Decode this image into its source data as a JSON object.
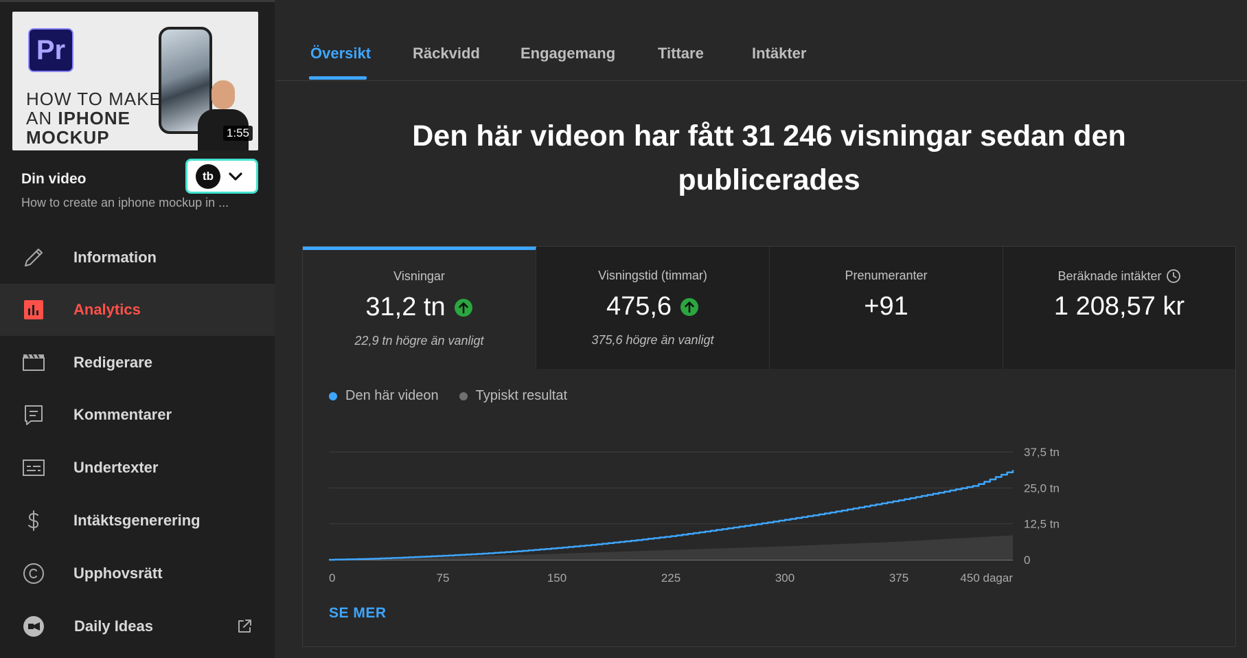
{
  "sidebar": {
    "thumbnail": {
      "logo_text": "Pr",
      "line1": "HOW TO MAKE",
      "line2_prefix": "AN ",
      "line2_bold": "IPHONE",
      "line3": "MOCKUP",
      "duration": "1:55"
    },
    "title": "Din video",
    "subtitle": "How to create an iphone mockup in ...",
    "extension_logo": "tb",
    "items": [
      {
        "label": "Information",
        "icon": "pencil-icon"
      },
      {
        "label": "Analytics",
        "icon": "analytics-icon"
      },
      {
        "label": "Redigerare",
        "icon": "clapperboard-icon"
      },
      {
        "label": "Kommentarer",
        "icon": "comment-icon"
      },
      {
        "label": "Undertexter",
        "icon": "subtitles-icon"
      },
      {
        "label": "Intäktsgenerering",
        "icon": "dollar-icon"
      },
      {
        "label": "Upphovsrätt",
        "icon": "copyright-icon"
      },
      {
        "label": "Daily Ideas",
        "icon": "daily-ideas-icon"
      }
    ]
  },
  "tabs": [
    "Översikt",
    "Räckvidd",
    "Engagemang",
    "Tittare",
    "Intäkter"
  ],
  "headline": "Den här videon har fått 31 246 visningar sedan den publicerades",
  "metrics": [
    {
      "label": "Visningar",
      "value": "31,2 tn",
      "sub": "22,9 tn högre än vanligt"
    },
    {
      "label": "Visningstid (timmar)",
      "value": "475,6",
      "sub": "375,6 högre än vanligt"
    },
    {
      "label": "Prenumeranter",
      "value": "+91",
      "sub": ""
    },
    {
      "label": "Beräknade intäkter",
      "value": "1 208,57 kr",
      "sub": ""
    }
  ],
  "legend": [
    {
      "label": "Den här videon",
      "color": "#3ea6ff"
    },
    {
      "label": "Typiskt resultat",
      "color": "#717171"
    }
  ],
  "see_more": "SE MER",
  "colors": {
    "accent": "#3ea6ff",
    "active_nav": "#ff5149",
    "up_badge": "#2ba640"
  },
  "chart_data": {
    "type": "line",
    "x_tick_labels": [
      "0",
      "75",
      "150",
      "225",
      "300",
      "375",
      "450 dagar"
    ],
    "x_ticks": [
      0,
      75,
      150,
      225,
      300,
      375,
      450
    ],
    "y_tick_labels": [
      "0",
      "12,5 tn",
      "25,0 tn",
      "37,5 tn"
    ],
    "y_ticks": [
      0,
      12500,
      25000,
      37500
    ],
    "xlim": [
      0,
      450
    ],
    "ylim": [
      0,
      37500
    ],
    "series": [
      {
        "name": "Den här videon",
        "color": "#3ea6ff",
        "x": [
          0,
          25,
          50,
          75,
          100,
          125,
          150,
          175,
          200,
          225,
          250,
          275,
          300,
          325,
          350,
          375,
          400,
          425,
          450
        ],
        "values": [
          0,
          300,
          800,
          1400,
          2100,
          3000,
          4100,
          5300,
          6700,
          8200,
          10000,
          11900,
          13900,
          16000,
          18300,
          20700,
          23200,
          25800,
          31200
        ]
      },
      {
        "name": "Typiskt resultat",
        "color": "#555555",
        "type": "area",
        "x": [
          0,
          75,
          150,
          225,
          300,
          375,
          450
        ],
        "low": [
          0,
          0,
          0,
          0,
          0,
          0,
          0
        ],
        "high": [
          0,
          900,
          2100,
          3400,
          4700,
          6300,
          8500
        ]
      }
    ],
    "grid": true
  }
}
